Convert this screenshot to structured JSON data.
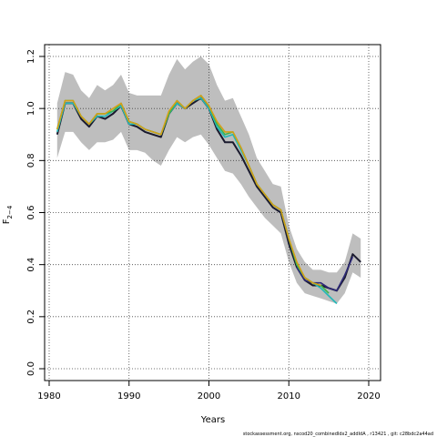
{
  "chart_data": {
    "type": "line",
    "xlabel": "Years",
    "ylabel_main": "F",
    "ylabel_sub": "2−4",
    "xlim": [
      1980,
      2020
    ],
    "ylim": [
      0.0,
      1.2
    ],
    "xticks": [
      1980,
      1990,
      2000,
      2010,
      2020
    ],
    "yticks": [
      0.0,
      0.2,
      0.4,
      0.6,
      0.8,
      1.0,
      1.2
    ],
    "grid": true,
    "confidence_band": {
      "color": "#bebebe",
      "x": [
        1981,
        1982,
        1983,
        1984,
        1985,
        1986,
        1987,
        1988,
        1989,
        1990,
        1991,
        1992,
        1993,
        1994,
        1995,
        1996,
        1997,
        1998,
        1999,
        2000,
        2001,
        2002,
        2003,
        2004,
        2005,
        2006,
        2007,
        2008,
        2009,
        2010,
        2011,
        2012,
        2013,
        2014,
        2015,
        2016,
        2017,
        2018,
        2019
      ],
      "upper": [
        1.02,
        1.14,
        1.13,
        1.07,
        1.04,
        1.09,
        1.07,
        1.09,
        1.13,
        1.06,
        1.05,
        1.05,
        1.05,
        1.05,
        1.13,
        1.19,
        1.15,
        1.18,
        1.2,
        1.17,
        1.09,
        1.03,
        1.04,
        0.97,
        0.9,
        0.81,
        0.76,
        0.71,
        0.7,
        0.55,
        0.46,
        0.41,
        0.38,
        0.38,
        0.37,
        0.37,
        0.41,
        0.52,
        0.5
      ],
      "lower": [
        0.81,
        0.91,
        0.91,
        0.87,
        0.84,
        0.87,
        0.87,
        0.88,
        0.91,
        0.84,
        0.84,
        0.83,
        0.8,
        0.78,
        0.84,
        0.89,
        0.87,
        0.89,
        0.9,
        0.86,
        0.81,
        0.76,
        0.75,
        0.71,
        0.66,
        0.62,
        0.58,
        0.55,
        0.52,
        0.41,
        0.33,
        0.29,
        0.28,
        0.27,
        0.26,
        0.25,
        0.29,
        0.37,
        0.35
      ]
    },
    "series": [
      {
        "color": "#1a1a2e",
        "x": [
          1981,
          1982,
          1983,
          1984,
          1985,
          1986,
          1987,
          1988,
          1989,
          1990,
          1991,
          1992,
          1993,
          1994,
          1995,
          1996,
          1997,
          1998,
          1999,
          2000,
          2001,
          2002,
          2003,
          2004,
          2005,
          2006,
          2007,
          2008,
          2009,
          2010,
          2011,
          2012,
          2013,
          2014,
          2015,
          2016,
          2017,
          2018,
          2019
        ],
        "values": [
          0.9,
          1.02,
          1.02,
          0.96,
          0.93,
          0.97,
          0.96,
          0.98,
          1.01,
          0.94,
          0.93,
          0.91,
          0.9,
          0.89,
          0.98,
          1.02,
          1.0,
          1.02,
          1.04,
          1.0,
          0.92,
          0.87,
          0.87,
          0.82,
          0.76,
          0.7,
          0.66,
          0.62,
          0.6,
          0.48,
          0.39,
          0.34,
          0.32,
          0.32,
          0.31,
          0.3,
          0.35,
          0.44,
          0.41
        ]
      },
      {
        "color": "#2e2a78",
        "x": [
          2011,
          2012,
          2013,
          2014,
          2015,
          2016,
          2017,
          2018
        ],
        "values": [
          0.39,
          0.34,
          0.33,
          0.33,
          0.31,
          0.3,
          0.36,
          0.43
        ]
      },
      {
        "color": "#22b8b8",
        "x": [
          1981,
          1982,
          1983,
          1984,
          1985,
          1986,
          1987,
          1988,
          1989,
          1990,
          1991,
          1992,
          1993,
          1994,
          1995,
          1996,
          1997,
          1998,
          1999,
          2000,
          2001,
          2002,
          2003,
          2004,
          2005,
          2006,
          2007,
          2008,
          2009,
          2010,
          2011,
          2012,
          2013,
          2014,
          2015,
          2016
        ],
        "values": [
          0.91,
          1.02,
          1.02,
          0.97,
          0.94,
          0.97,
          0.97,
          0.99,
          1.01,
          0.94,
          0.94,
          0.92,
          0.91,
          0.9,
          0.98,
          1.02,
          1.0,
          1.03,
          1.04,
          1.0,
          0.93,
          0.89,
          0.9,
          0.84,
          0.78,
          0.71,
          0.67,
          0.63,
          0.61,
          0.5,
          0.4,
          0.35,
          0.33,
          0.31,
          0.28,
          0.25
        ]
      },
      {
        "color": "#3cb44b",
        "x": [
          1981,
          1982,
          1983,
          1984,
          1985,
          1986,
          1987,
          1988,
          1989,
          1990,
          1991,
          1992,
          1993,
          1994,
          1995,
          1996,
          1997,
          1998,
          1999,
          2000,
          2001,
          2002,
          2003,
          2004,
          2005,
          2006,
          2007,
          2008,
          2009,
          2010,
          2011,
          2012,
          2013,
          2014,
          2015
        ],
        "values": [
          0.92,
          1.03,
          1.03,
          0.97,
          0.94,
          0.98,
          0.98,
          0.99,
          1.02,
          0.95,
          0.94,
          0.92,
          0.91,
          0.9,
          0.98,
          1.03,
          1.0,
          1.03,
          1.05,
          1.01,
          0.94,
          0.9,
          0.91,
          0.85,
          0.78,
          0.71,
          0.67,
          0.63,
          0.61,
          0.5,
          0.4,
          0.35,
          0.33,
          0.32,
          0.29
        ]
      },
      {
        "color": "#d4a017",
        "x": [
          1981,
          1982,
          1983,
          1984,
          1985,
          1986,
          1987,
          1988,
          1989,
          1990,
          1991,
          1992,
          1993,
          1994,
          1995,
          1996,
          1997,
          1998,
          1999,
          2000,
          2001,
          2002,
          2003,
          2004,
          2005,
          2006,
          2007,
          2008,
          2009,
          2010,
          2011,
          2012,
          2013,
          2014
        ],
        "values": [
          0.92,
          1.03,
          1.03,
          0.97,
          0.94,
          0.98,
          0.98,
          1.0,
          1.02,
          0.95,
          0.94,
          0.92,
          0.91,
          0.9,
          0.99,
          1.03,
          1.0,
          1.03,
          1.05,
          1.01,
          0.95,
          0.91,
          0.91,
          0.85,
          0.78,
          0.71,
          0.67,
          0.63,
          0.61,
          0.5,
          0.41,
          0.35,
          0.33,
          0.32
        ]
      }
    ]
  },
  "footer": {
    "source": "stockassessment.org,  nscod20_combinedIdx2_addIdA  ,  r13421  ,  git:  c28bdc2a44ad"
  }
}
